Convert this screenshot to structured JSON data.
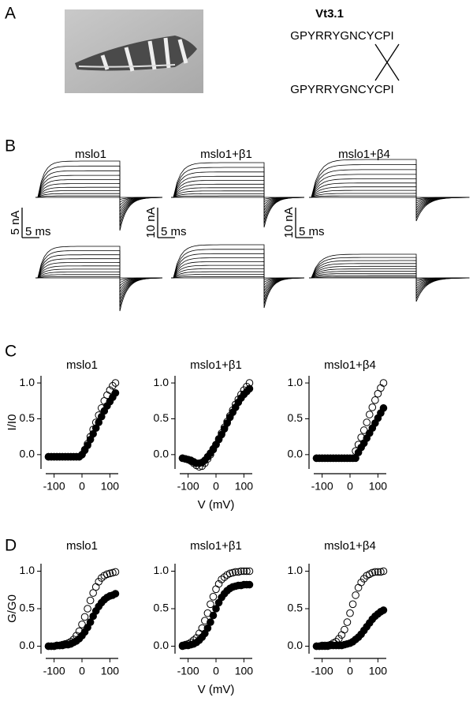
{
  "panel_labels": [
    "A",
    "B",
    "C",
    "D"
  ],
  "peptide": {
    "name": "Vt3.1",
    "sequence_top": "GPYRRYGNCYCPI",
    "sequence_bottom": "GPYRRYGNCYCPI"
  },
  "traces": [
    {
      "title": "mslo1",
      "current_scale": "5 nA",
      "time_scale": "5 ms"
    },
    {
      "title": "mslo1+β1",
      "current_scale": "10 nA",
      "time_scale": "5 ms"
    },
    {
      "title": "mslo1+β4",
      "current_scale": "10 nA",
      "time_scale": "5 ms"
    }
  ],
  "chart_data": [
    {
      "type": "scatter",
      "title": "mslo1",
      "ylabel": "I/I0",
      "x": [
        -120,
        -110,
        -100,
        -90,
        -80,
        -70,
        -60,
        -50,
        -40,
        -30,
        -20,
        -10,
        0,
        10,
        20,
        30,
        40,
        50,
        60,
        70,
        80,
        90,
        100,
        110,
        120
      ],
      "series": [
        {
          "color": "#000000",
          "marker_fill": "none",
          "values": [
            -0.03,
            -0.03,
            -0.03,
            -0.03,
            -0.03,
            -0.03,
            -0.03,
            -0.03,
            -0.03,
            -0.03,
            -0.03,
            -0.03,
            0.0,
            0.07,
            0.15,
            0.25,
            0.35,
            0.45,
            0.55,
            0.65,
            0.75,
            0.83,
            0.9,
            0.96,
            1.0
          ]
        },
        {
          "color": "#000000",
          "marker_fill": "#000000",
          "values": [
            -0.03,
            -0.03,
            -0.03,
            -0.03,
            -0.03,
            -0.03,
            -0.03,
            -0.03,
            -0.03,
            -0.03,
            -0.03,
            -0.03,
            0.0,
            0.06,
            0.13,
            0.21,
            0.29,
            0.37,
            0.45,
            0.53,
            0.61,
            0.68,
            0.74,
            0.8,
            0.86
          ]
        }
      ],
      "xlim": [
        -130,
        130
      ],
      "xticks": [
        -100,
        0,
        100
      ],
      "ylim": [
        -0.2,
        1.1
      ],
      "yticks": [
        {
          "value": 0,
          "label": "0.0"
        },
        {
          "value": 0.5,
          "label": "0.5"
        },
        {
          "value": 1,
          "label": "1.0"
        }
      ]
    },
    {
      "type": "scatter",
      "title": "mslo1+β1",
      "xlabel": "V (mV)",
      "x": [
        -120,
        -110,
        -100,
        -90,
        -80,
        -70,
        -60,
        -50,
        -40,
        -30,
        -20,
        -10,
        0,
        10,
        20,
        30,
        40,
        50,
        60,
        70,
        80,
        90,
        100,
        110,
        120
      ],
      "series": [
        {
          "color": "#000000",
          "marker_fill": "none",
          "values": [
            -0.05,
            -0.06,
            -0.07,
            -0.09,
            -0.12,
            -0.15,
            -0.17,
            -0.16,
            -0.12,
            -0.06,
            0.0,
            0.07,
            0.14,
            0.22,
            0.3,
            0.38,
            0.46,
            0.54,
            0.62,
            0.7,
            0.77,
            0.84,
            0.9,
            0.95,
            1.0
          ]
        },
        {
          "color": "#000000",
          "marker_fill": "#000000",
          "values": [
            -0.05,
            -0.06,
            -0.07,
            -0.08,
            -0.1,
            -0.12,
            -0.12,
            -0.11,
            -0.08,
            -0.03,
            0.02,
            0.08,
            0.14,
            0.21,
            0.28,
            0.36,
            0.44,
            0.52,
            0.59,
            0.66,
            0.73,
            0.79,
            0.84,
            0.88,
            0.92
          ]
        }
      ],
      "xlim": [
        -130,
        130
      ],
      "xticks": [
        -100,
        0,
        100
      ],
      "ylim": [
        -0.2,
        1.1
      ],
      "yticks": [
        {
          "value": 0,
          "label": "0.0"
        },
        {
          "value": 0.5,
          "label": "0.5"
        },
        {
          "value": 1,
          "label": "1.0"
        }
      ]
    },
    {
      "type": "scatter",
      "title": "mslo1+β4",
      "x": [
        -120,
        -110,
        -100,
        -90,
        -80,
        -70,
        -60,
        -50,
        -40,
        -30,
        -20,
        -10,
        0,
        10,
        20,
        30,
        40,
        50,
        60,
        70,
        80,
        90,
        100,
        110,
        120
      ],
      "series": [
        {
          "color": "#000000",
          "marker_fill": "none",
          "values": [
            -0.05,
            -0.05,
            -0.05,
            -0.05,
            -0.05,
            -0.05,
            -0.05,
            -0.05,
            -0.05,
            -0.05,
            -0.05,
            -0.05,
            -0.05,
            -0.05,
            0.05,
            0.14,
            0.24,
            0.34,
            0.45,
            0.56,
            0.66,
            0.76,
            0.85,
            0.93,
            1.0
          ]
        },
        {
          "color": "#000000",
          "marker_fill": "#000000",
          "values": [
            -0.05,
            -0.05,
            -0.05,
            -0.05,
            -0.05,
            -0.05,
            -0.05,
            -0.05,
            -0.05,
            -0.05,
            -0.05,
            -0.05,
            -0.05,
            -0.05,
            -0.05,
            0.03,
            0.1,
            0.16,
            0.23,
            0.3,
            0.37,
            0.44,
            0.51,
            0.58,
            0.65
          ]
        }
      ],
      "xlim": [
        -130,
        130
      ],
      "xticks": [
        -100,
        0,
        100
      ],
      "ylim": [
        -0.2,
        1.1
      ],
      "yticks": [
        {
          "value": 0,
          "label": "0.0"
        },
        {
          "value": 0.5,
          "label": "0.5"
        },
        {
          "value": 1,
          "label": "1.0"
        }
      ]
    },
    {
      "type": "scatter",
      "title": "mslo1",
      "ylabel": "G/G0",
      "x": [
        -120,
        -110,
        -100,
        -90,
        -80,
        -70,
        -60,
        -50,
        -40,
        -30,
        -20,
        -10,
        0,
        10,
        20,
        30,
        40,
        50,
        60,
        70,
        80,
        90,
        100,
        110,
        120
      ],
      "series": [
        {
          "color": "#000000",
          "marker_fill": "none",
          "values": [
            0.0,
            0.0,
            0.0,
            0.01,
            0.01,
            0.02,
            0.03,
            0.04,
            0.06,
            0.09,
            0.14,
            0.2,
            0.29,
            0.39,
            0.5,
            0.61,
            0.71,
            0.79,
            0.86,
            0.91,
            0.94,
            0.96,
            0.97,
            0.98,
            0.99
          ]
        },
        {
          "color": "#000000",
          "marker_fill": "#000000",
          "values": [
            0.0,
            0.0,
            0.0,
            0.01,
            0.01,
            0.01,
            0.02,
            0.02,
            0.03,
            0.05,
            0.07,
            0.1,
            0.14,
            0.19,
            0.25,
            0.32,
            0.4,
            0.47,
            0.53,
            0.58,
            0.62,
            0.65,
            0.67,
            0.68,
            0.7
          ]
        }
      ],
      "xlim": [
        -130,
        130
      ],
      "xticks": [
        -100,
        0,
        100
      ],
      "ylim": [
        -0.1,
        1.1
      ],
      "yticks": [
        {
          "value": 0,
          "label": "0.0"
        },
        {
          "value": 0.5,
          "label": "0.5"
        },
        {
          "value": 1,
          "label": "1.0"
        }
      ]
    },
    {
      "type": "scatter",
      "title": "mslo1+β1",
      "xlabel": "V (mV)",
      "x": [
        -120,
        -110,
        -100,
        -90,
        -80,
        -70,
        -60,
        -50,
        -40,
        -30,
        -20,
        -10,
        0,
        10,
        20,
        30,
        40,
        50,
        60,
        70,
        80,
        90,
        100,
        110,
        120
      ],
      "series": [
        {
          "color": "#000000",
          "marker_fill": "none",
          "values": [
            0.01,
            0.02,
            0.03,
            0.05,
            0.08,
            0.11,
            0.17,
            0.24,
            0.34,
            0.44,
            0.56,
            0.66,
            0.76,
            0.83,
            0.89,
            0.92,
            0.95,
            0.97,
            0.98,
            0.99,
            0.99,
            1.0,
            1.0,
            1.0,
            1.0
          ]
        },
        {
          "color": "#000000",
          "marker_fill": "#000000",
          "values": [
            0.0,
            0.01,
            0.01,
            0.02,
            0.03,
            0.05,
            0.08,
            0.12,
            0.17,
            0.24,
            0.32,
            0.41,
            0.5,
            0.58,
            0.65,
            0.7,
            0.74,
            0.77,
            0.79,
            0.8,
            0.81,
            0.81,
            0.82,
            0.82,
            0.82
          ]
        }
      ],
      "xlim": [
        -130,
        130
      ],
      "xticks": [
        -100,
        0,
        100
      ],
      "ylim": [
        -0.1,
        1.1
      ],
      "yticks": [
        {
          "value": 0,
          "label": "0.0"
        },
        {
          "value": 0.5,
          "label": "0.5"
        },
        {
          "value": 1,
          "label": "1.0"
        }
      ]
    },
    {
      "type": "scatter",
      "title": "mslo1+β4",
      "x": [
        -120,
        -110,
        -100,
        -90,
        -80,
        -70,
        -60,
        -50,
        -40,
        -30,
        -20,
        -10,
        0,
        10,
        20,
        30,
        40,
        50,
        60,
        70,
        80,
        90,
        100,
        110,
        120
      ],
      "series": [
        {
          "color": "#000000",
          "marker_fill": "none",
          "values": [
            0.0,
            0.0,
            0.01,
            0.01,
            0.01,
            0.02,
            0.04,
            0.06,
            0.1,
            0.15,
            0.22,
            0.32,
            0.44,
            0.56,
            0.68,
            0.78,
            0.85,
            0.9,
            0.94,
            0.96,
            0.98,
            0.99,
            0.99,
            0.99,
            1.0
          ]
        },
        {
          "color": "#000000",
          "marker_fill": "#000000",
          "values": [
            0.0,
            0.0,
            0.0,
            0.0,
            0.0,
            0.01,
            0.01,
            0.01,
            0.01,
            0.01,
            0.02,
            0.03,
            0.04,
            0.06,
            0.09,
            0.12,
            0.16,
            0.21,
            0.26,
            0.31,
            0.36,
            0.4,
            0.43,
            0.46,
            0.48
          ]
        }
      ],
      "xlim": [
        -130,
        130
      ],
      "xticks": [
        -100,
        0,
        100
      ],
      "ylim": [
        -0.1,
        1.1
      ],
      "yticks": [
        {
          "value": 0,
          "label": "0.0"
        },
        {
          "value": 0.5,
          "label": "0.5"
        },
        {
          "value": 1,
          "label": "1.0"
        }
      ]
    }
  ]
}
